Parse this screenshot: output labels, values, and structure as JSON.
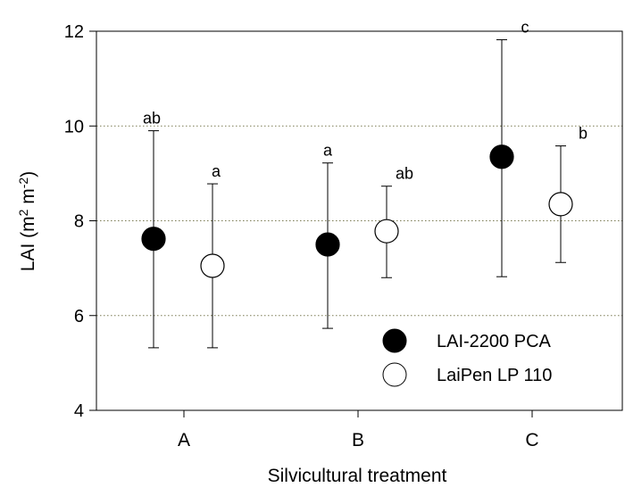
{
  "chart_data": {
    "type": "scatter",
    "title": "",
    "xlabel": "Silvicultural treatment",
    "ylabel": {
      "base": "LAI (m",
      "sup1": "2",
      "mid": " m",
      "sup2": "-2",
      "end": ")"
    },
    "categories": [
      "A",
      "B",
      "C"
    ],
    "ylim": [
      4,
      12
    ],
    "yticks": [
      4,
      6,
      8,
      10,
      12
    ],
    "gridlines": [
      6,
      8,
      10
    ],
    "legend_position": "lower-right",
    "series": [
      {
        "name": "LAI-2200 PCA",
        "marker": "filled-circle",
        "color": "#000000",
        "values": [
          7.62,
          7.5,
          9.35
        ],
        "err_low": [
          5.32,
          5.73,
          6.82
        ],
        "err_high": [
          9.9,
          9.22,
          11.82
        ],
        "letters": [
          "ab",
          "a",
          "c"
        ]
      },
      {
        "name": "LaiPen LP 110",
        "marker": "open-circle",
        "color": "#000000",
        "values": [
          7.05,
          7.78,
          8.35
        ],
        "err_low": [
          5.32,
          6.8,
          7.12
        ],
        "err_high": [
          8.78,
          8.73,
          9.58
        ],
        "letters": [
          "a",
          "ab",
          "b"
        ]
      }
    ]
  }
}
